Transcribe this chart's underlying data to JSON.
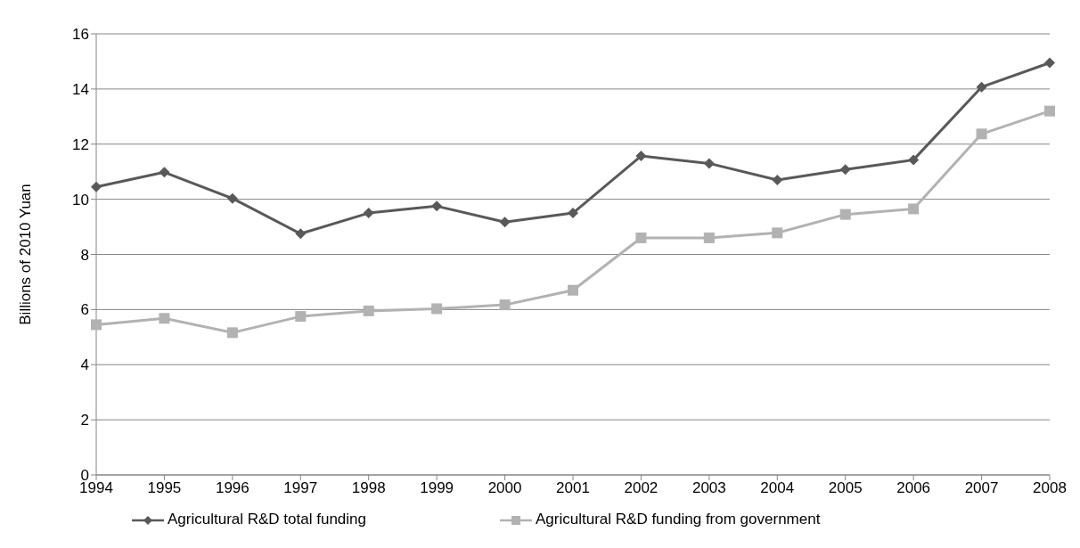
{
  "chart_data": {
    "type": "line",
    "ylabel": "Billions of 2010 Yuan",
    "categories": [
      "1994",
      "1995",
      "1996",
      "1997",
      "1998",
      "1999",
      "2000",
      "2001",
      "2002",
      "2003",
      "2004",
      "2005",
      "2006",
      "2007",
      "2008"
    ],
    "series": [
      {
        "name": "Agricultural R&D total funding",
        "color": "#595959",
        "marker": "diamond",
        "values": [
          10.45,
          10.98,
          10.03,
          8.75,
          9.5,
          9.75,
          9.17,
          9.5,
          11.57,
          11.3,
          10.7,
          11.08,
          11.43,
          14.07,
          14.95
        ]
      },
      {
        "name": "Agricultural R&D funding from government",
        "color": "#b2b2b2",
        "marker": "square",
        "values": [
          5.45,
          5.68,
          5.16,
          5.75,
          5.95,
          6.03,
          6.17,
          6.7,
          8.6,
          8.6,
          8.78,
          9.45,
          9.65,
          12.37,
          13.2
        ]
      }
    ],
    "ylim": [
      0,
      16
    ],
    "yticks": [
      0,
      2,
      4,
      6,
      8,
      10,
      12,
      14,
      16
    ],
    "grid": "y",
    "legend": "bottom",
    "line_style": "solid"
  }
}
